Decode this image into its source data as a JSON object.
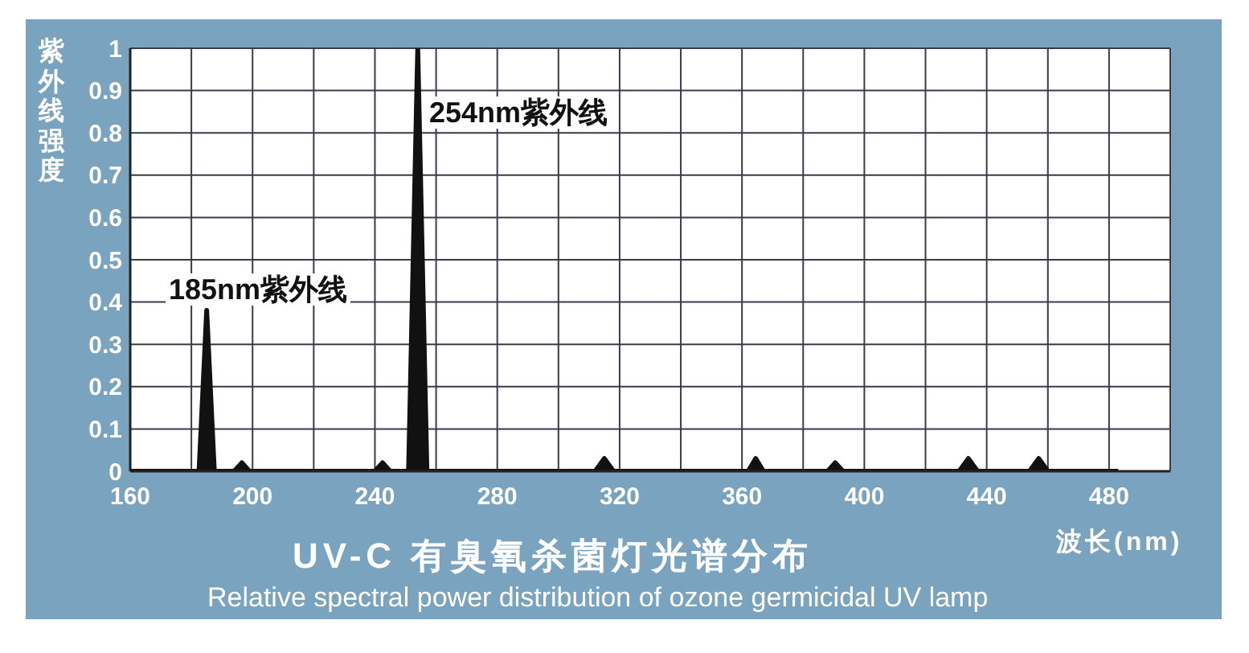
{
  "chart_data": {
    "type": "area",
    "title": "UV-C 有臭氧杀菌灯光谱分布",
    "subtitle": "Relative spectral power distribution of ozone germicidal UV lamp",
    "xlabel": "波长(nm)",
    "ylabel": "紫外线强度",
    "x": [
      160,
      182.5,
      185,
      187.5,
      194,
      196.5,
      199,
      240,
      242.5,
      245,
      251,
      254,
      257,
      312,
      315,
      318,
      362,
      364.5,
      367,
      388,
      390.5,
      393,
      431,
      434,
      437,
      454,
      457,
      460,
      483
    ],
    "values": [
      0,
      0,
      0.38,
      0,
      0,
      0.02,
      0,
      0,
      0.02,
      0,
      0,
      1,
      0,
      0,
      0.03,
      0,
      0,
      0.03,
      0,
      0,
      0.02,
      0,
      0,
      0.03,
      0,
      0,
      0.03,
      0,
      0
    ],
    "color": "#111111",
    "marker": "none",
    "line_style": "solid",
    "xlim": [
      160,
      500
    ],
    "xticks": [
      160,
      {
        "value": 180,
        "label": null
      },
      200,
      {
        "value": 220,
        "label": null
      },
      240,
      {
        "value": 260,
        "label": null
      },
      280,
      {
        "value": 300,
        "label": null
      },
      320,
      {
        "value": 340,
        "label": null
      },
      360,
      {
        "value": 380,
        "label": null
      },
      400,
      {
        "value": 420,
        "label": null
      },
      440,
      {
        "value": 460,
        "label": null
      },
      480,
      {
        "value": 500,
        "label": null
      }
    ],
    "ylim": [
      0,
      1
    ],
    "yticks": [
      0,
      0.1,
      0.2,
      0.3,
      0.4,
      0.5,
      0.6,
      0.7,
      0.8,
      0.9,
      1
    ],
    "grid": true,
    "annotations": [
      "254nm紫外线",
      "185nm紫外线"
    ]
  }
}
